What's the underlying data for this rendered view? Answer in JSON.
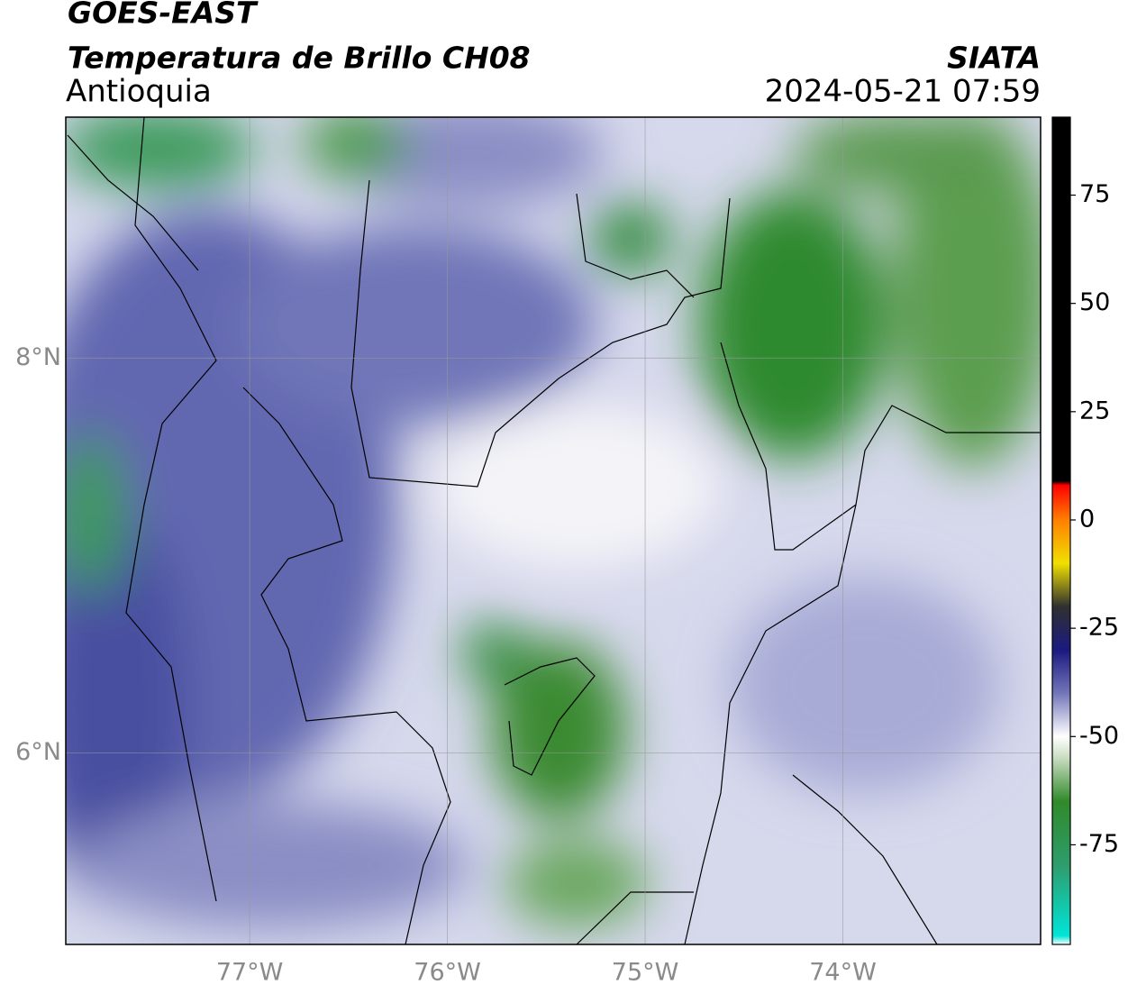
{
  "chart_data": {
    "type": "map",
    "title": "GOES-EAST",
    "subtitle": "Temperatura de Brillo CH08",
    "region": "Antioquia",
    "source": "SIATA",
    "timestamp": "2024-05-21 07:59",
    "xlim": [
      -77.93,
      -73.0
    ],
    "ylim": [
      5.03,
      9.22
    ],
    "xticks": [
      {
        "value": -77,
        "label": "77°W"
      },
      {
        "value": -76,
        "label": "76°W"
      },
      {
        "value": -75,
        "label": "75°W"
      },
      {
        "value": -74,
        "label": "74°W"
      }
    ],
    "yticks": [
      {
        "value": 6,
        "label": "6°N"
      },
      {
        "value": 8,
        "label": "8°N"
      }
    ],
    "grid": true,
    "colorbar": {
      "clim": [
        -98,
        93
      ],
      "ticks": [
        75,
        50,
        25,
        0,
        -25,
        -50,
        -75
      ],
      "colormap": [
        [
          -98,
          "#ffffff"
        ],
        [
          -96,
          "#00e5d8"
        ],
        [
          -80,
          "#2e9e6e"
        ],
        [
          -65,
          "#2f8a2a"
        ],
        [
          -55,
          "#c8dcc0"
        ],
        [
          -50,
          "#ffffff"
        ],
        [
          -40,
          "#7276b8"
        ],
        [
          -30,
          "#1a1a80"
        ],
        [
          -20,
          "#303030"
        ],
        [
          -10,
          "#f0e000"
        ],
        [
          0,
          "#ff8000"
        ],
        [
          8,
          "#ff0000"
        ],
        [
          9,
          "#000000"
        ],
        [
          93,
          "#000000"
        ]
      ]
    }
  }
}
